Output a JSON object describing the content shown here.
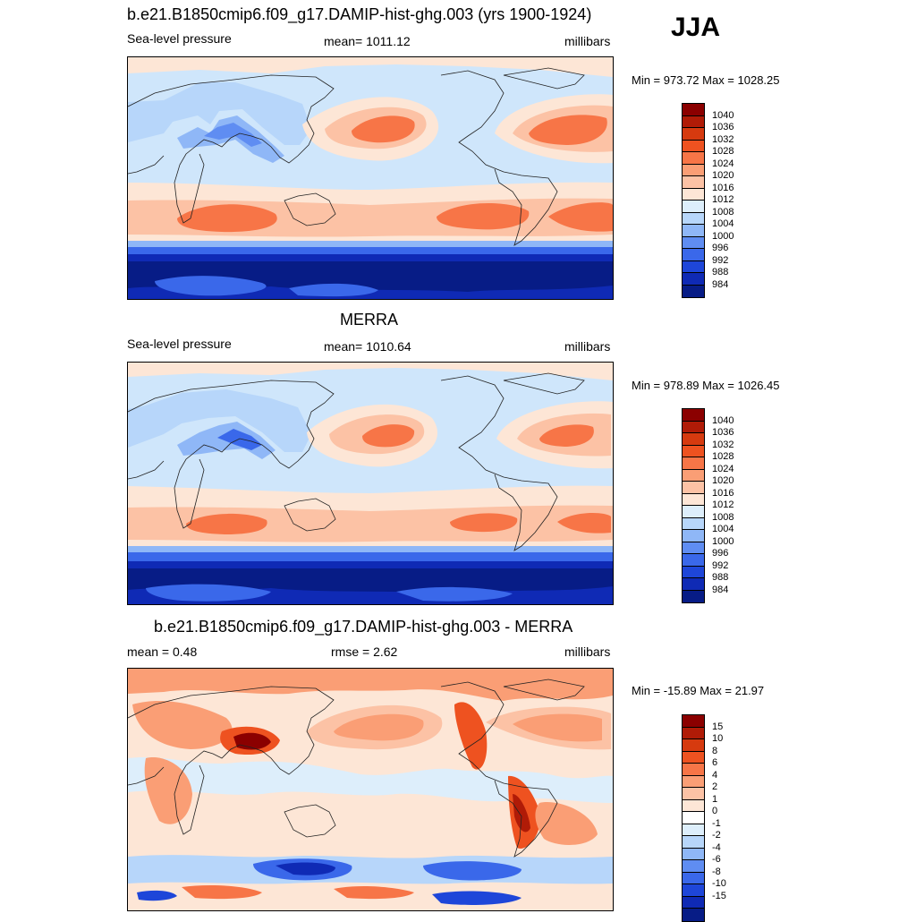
{
  "season": "JJA",
  "panels": [
    {
      "title": "b.e21.B1850cmip6.f09_g17.DAMIP-hist-ghg.003 (yrs 1900-1924)",
      "left": "Sea-level pressure",
      "center": "mean= 1011.12",
      "right": "millibars",
      "minmax": "Min = 973.72 Max = 1028.25",
      "map_background": "#cfe6fb",
      "colorbar": {
        "colors": [
          "#8b0000",
          "#b01b07",
          "#d63a0f",
          "#ee5220",
          "#f77547",
          "#fa9e75",
          "#fcc2a5",
          "#fde6d6",
          "#ddeefb",
          "#b7d6fa",
          "#8fb7f7",
          "#5f8df2",
          "#3a68ea",
          "#1e46d9",
          "#0f2ab5",
          "#071c86"
        ],
        "labels": [
          "1040",
          "1036",
          "1032",
          "1028",
          "1024",
          "1020",
          "1016",
          "1012",
          "1008",
          "1004",
          "1000",
          "996",
          "992",
          "988",
          "984"
        ]
      }
    },
    {
      "title": "MERRA",
      "left": "Sea-level pressure",
      "center": "mean= 1010.64",
      "right": "millibars",
      "minmax": "Min = 978.89 Max = 1026.45",
      "map_background": "#cfe6fb",
      "colorbar": {
        "colors": [
          "#8b0000",
          "#b01b07",
          "#d63a0f",
          "#ee5220",
          "#f77547",
          "#fa9e75",
          "#fcc2a5",
          "#fde6d6",
          "#ddeefb",
          "#b7d6fa",
          "#8fb7f7",
          "#5f8df2",
          "#3a68ea",
          "#1e46d9",
          "#0f2ab5",
          "#071c86"
        ],
        "labels": [
          "1040",
          "1036",
          "1032",
          "1028",
          "1024",
          "1020",
          "1016",
          "1012",
          "1008",
          "1004",
          "1000",
          "996",
          "992",
          "988",
          "984"
        ]
      }
    },
    {
      "title": "b.e21.B1850cmip6.f09_g17.DAMIP-hist-ghg.003 - MERRA",
      "left": "mean =   0.48",
      "center": "rmse =   2.62",
      "right": "millibars",
      "minmax": "Min = -15.89 Max =  21.97",
      "map_background": "#fde6d6",
      "colorbar": {
        "colors": [
          "#8b0000",
          "#b01b07",
          "#d63a0f",
          "#ee5220",
          "#f77547",
          "#fa9e75",
          "#fcc2a5",
          "#fde6d6",
          "#ffffff",
          "#ddeefb",
          "#b7d6fa",
          "#8fb7f7",
          "#5f8df2",
          "#3a68ea",
          "#1e46d9",
          "#0f2ab5",
          "#071c86"
        ],
        "labels": [
          "15",
          "10",
          "8",
          "6",
          "4",
          "2",
          "1",
          "0",
          "-1",
          "-2",
          "-4",
          "-6",
          "-8",
          "-10",
          "-15"
        ]
      }
    }
  ],
  "chart_data": {
    "type": "heatmap",
    "variable": "Sea-level pressure",
    "units": "millibars",
    "season": "JJA",
    "maps": [
      {
        "title": "b.e21.B1850cmip6.f09_g17.DAMIP-hist-ghg.003 (yrs 1900-1924)",
        "mean": 1011.12,
        "min": 973.72,
        "max": 1028.25,
        "contour_levels": [
          984,
          988,
          992,
          996,
          1000,
          1004,
          1008,
          1012,
          1016,
          1020,
          1024,
          1028,
          1032,
          1036,
          1040
        ]
      },
      {
        "title": "MERRA",
        "mean": 1010.64,
        "min": 978.89,
        "max": 1026.45,
        "contour_levels": [
          984,
          988,
          992,
          996,
          1000,
          1004,
          1008,
          1012,
          1016,
          1020,
          1024,
          1028,
          1032,
          1036,
          1040
        ]
      },
      {
        "title": "b.e21.B1850cmip6.f09_g17.DAMIP-hist-ghg.003 - MERRA",
        "mean": 0.48,
        "rmse": 2.62,
        "min": -15.89,
        "max": 21.97,
        "contour_levels": [
          -15,
          -10,
          -8,
          -6,
          -4,
          -2,
          -1,
          0,
          1,
          2,
          4,
          6,
          8,
          10,
          15
        ]
      }
    ]
  }
}
